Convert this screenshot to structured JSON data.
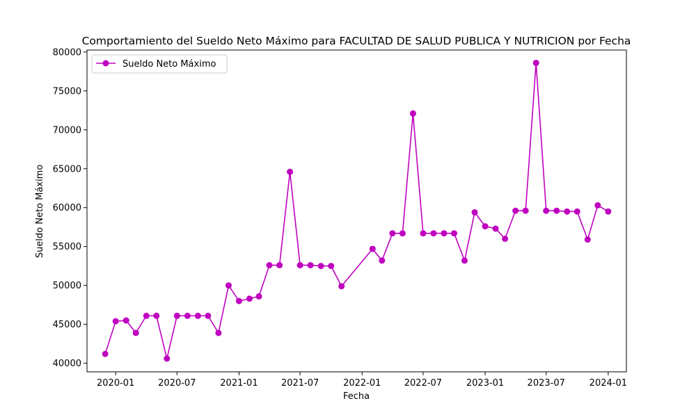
{
  "chart_data": {
    "type": "line",
    "title": "Comportamiento del Sueldo Neto Máximo para FACULTAD DE SALUD PUBLICA Y NUTRICION por Fecha",
    "xlabel": "Fecha",
    "ylabel": "Sueldo Neto Máximo",
    "x_ticks": [
      "2020-01",
      "2020-07",
      "2021-01",
      "2021-07",
      "2022-01",
      "2022-07",
      "2023-01",
      "2023-07",
      "2024-01"
    ],
    "y_ticks": [
      40000,
      45000,
      50000,
      55000,
      60000,
      65000,
      70000,
      75000,
      80000
    ],
    "xlim": [
      "2019-10-08",
      "2024-02-24"
    ],
    "ylim": [
      38900,
      80250
    ],
    "grid": false,
    "legend": "upper-left",
    "color": "#bf00bf",
    "marker": "circle",
    "series": [
      {
        "name": "Sueldo Neto Máximo",
        "x": [
          "2019-12-01",
          "2020-01-01",
          "2020-02-01",
          "2020-03-01",
          "2020-04-01",
          "2020-05-01",
          "2020-06-01",
          "2020-07-01",
          "2020-08-01",
          "2020-09-01",
          "2020-10-01",
          "2020-11-01",
          "2020-12-01",
          "2021-01-01",
          "2021-02-01",
          "2021-03-01",
          "2021-04-01",
          "2021-05-01",
          "2021-06-01",
          "2021-07-01",
          "2021-08-01",
          "2021-09-01",
          "2021-10-01",
          "2021-11-01",
          "2022-02-01",
          "2022-03-01",
          "2022-04-01",
          "2022-05-01",
          "2022-06-01",
          "2022-07-01",
          "2022-08-01",
          "2022-09-01",
          "2022-10-01",
          "2022-11-01",
          "2022-12-01",
          "2023-01-01",
          "2023-02-01",
          "2023-03-01",
          "2023-04-01",
          "2023-05-01",
          "2023-06-01",
          "2023-07-01",
          "2023-08-01",
          "2023-09-01",
          "2023-10-01",
          "2023-11-01",
          "2023-12-01",
          "2024-01-01"
        ],
        "values": [
          41200,
          45400,
          45500,
          43900,
          46100,
          46100,
          40600,
          46100,
          46100,
          46100,
          46100,
          43900,
          50000,
          48000,
          48300,
          48600,
          52600,
          52600,
          64600,
          52600,
          52600,
          52500,
          52500,
          49900,
          54700,
          53200,
          56700,
          56700,
          72100,
          56700,
          56700,
          56700,
          56700,
          53200,
          59400,
          57600,
          57300,
          56000,
          59600,
          59600,
          78600,
          59600,
          59600,
          59500,
          59500,
          55900,
          60300,
          59500
        ]
      }
    ]
  }
}
